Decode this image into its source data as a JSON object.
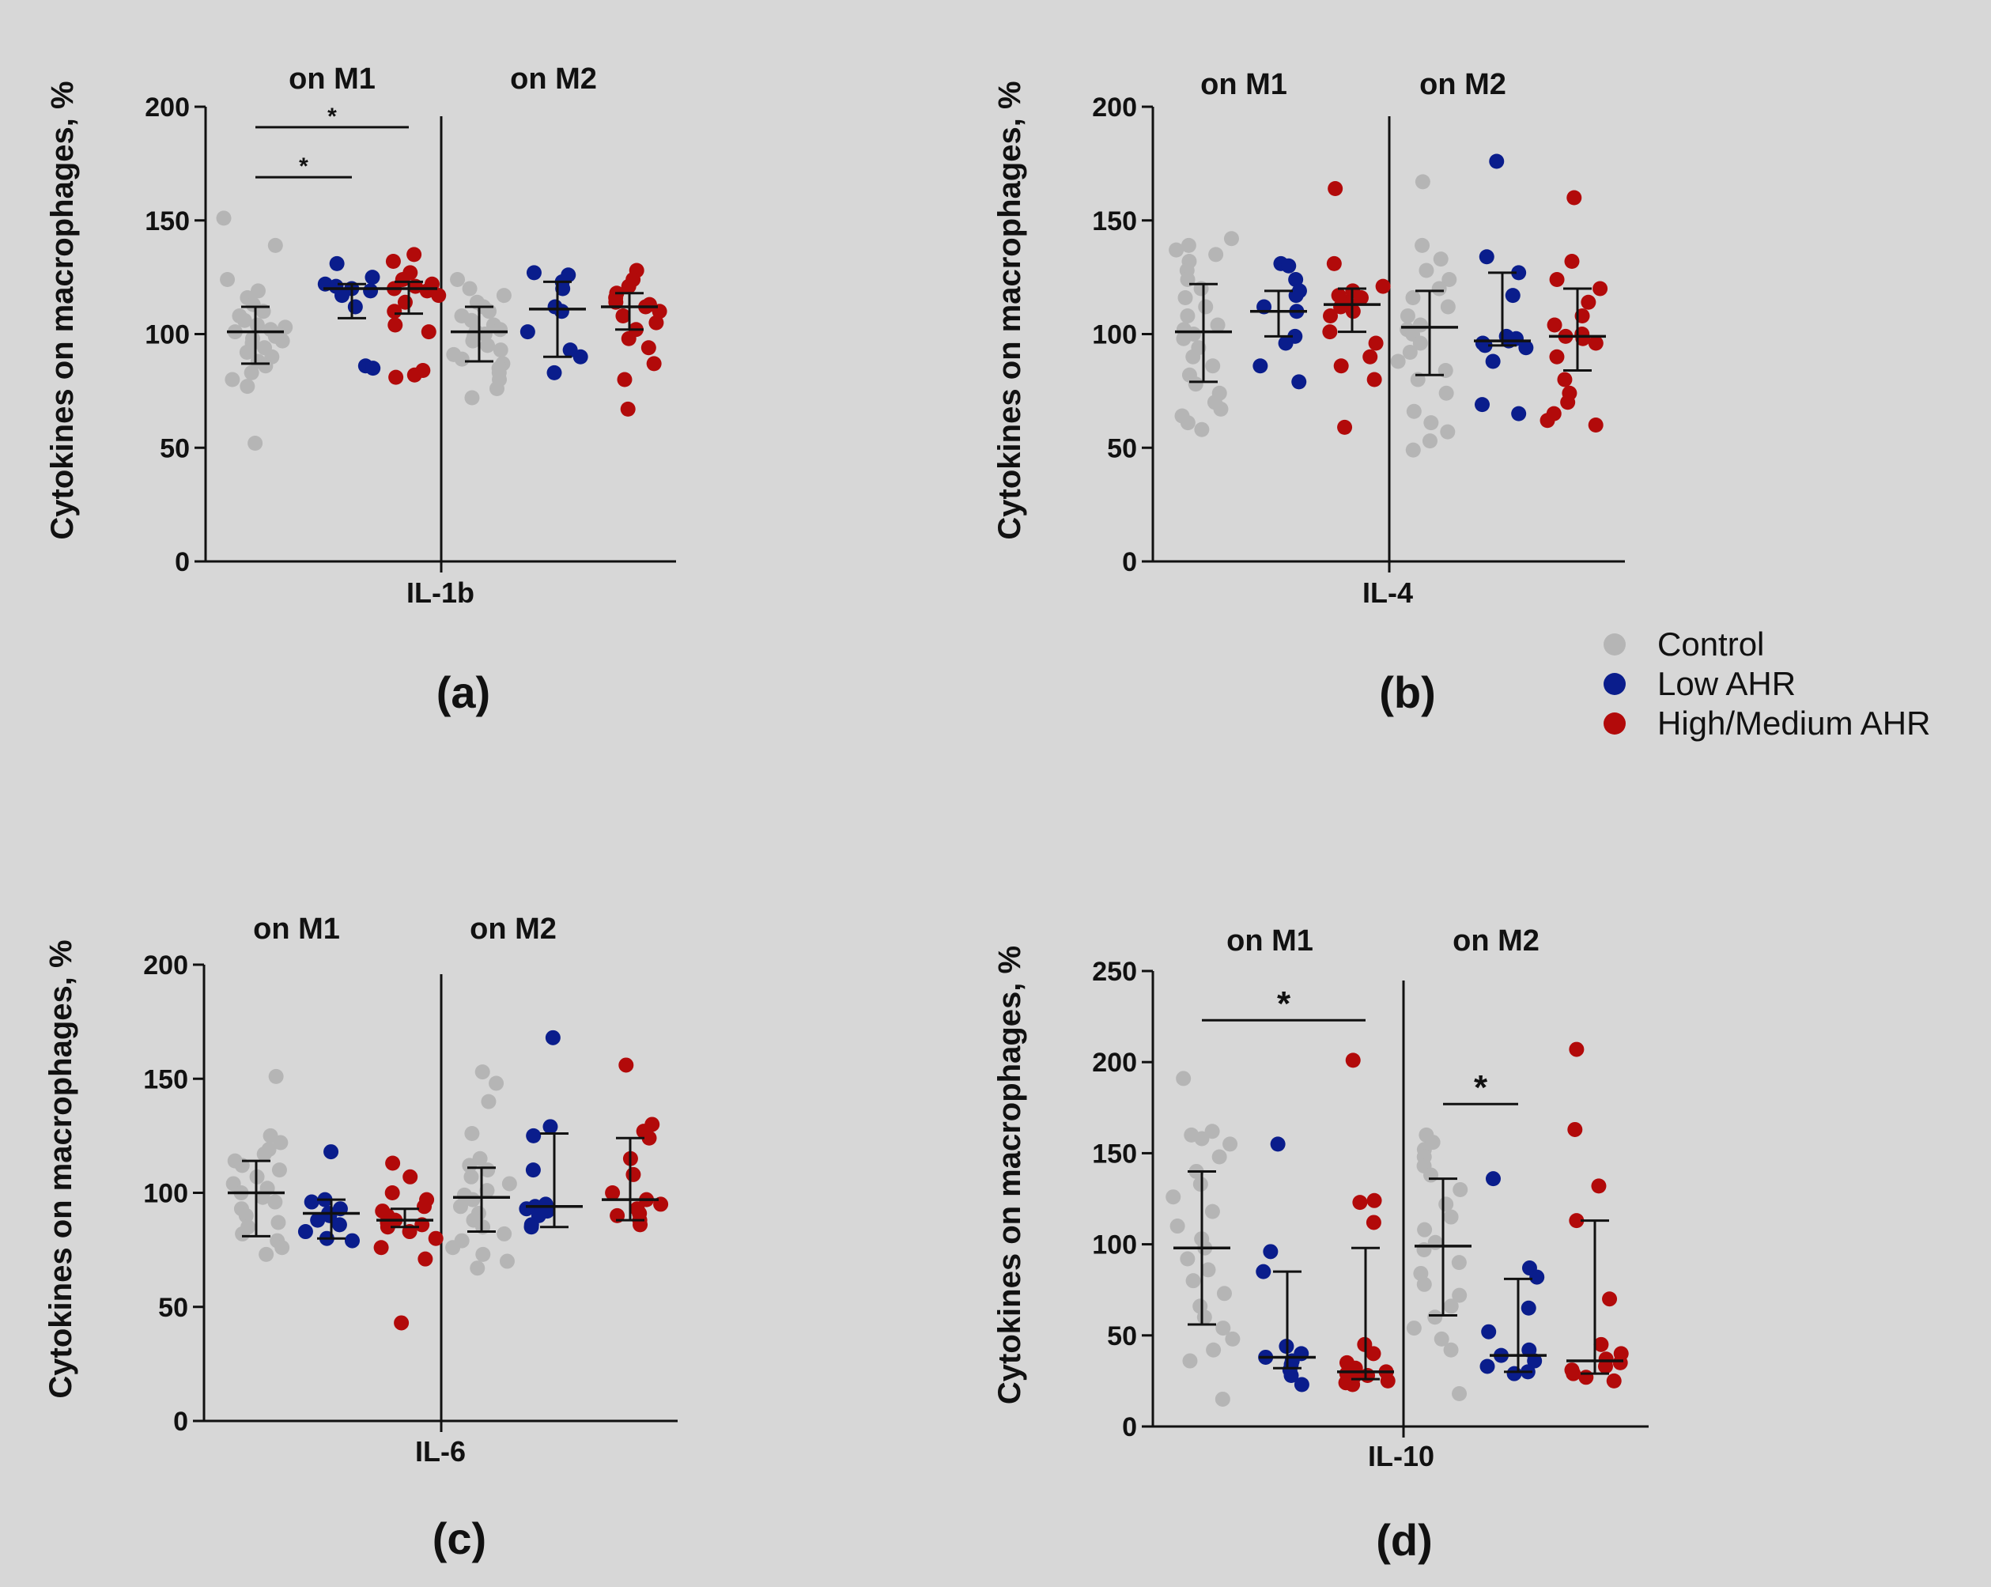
{
  "legend": {
    "items": [
      {
        "label": "Control",
        "color": "#b5b5b5"
      },
      {
        "label": "Low AHR",
        "color": "#0a1d8c"
      },
      {
        "label": "High/Medium AHR",
        "color": "#b20a0a"
      }
    ]
  },
  "colors": {
    "control": "#b5b5b5",
    "low": "#0a1d8c",
    "high": "#b20a0a",
    "axis": "#111111"
  },
  "chart_data": [
    {
      "type": "scatter",
      "panel_label": "(a)",
      "xlabel": "IL-1b",
      "ylabel": "Cytokines on macrophages, %",
      "ylim": [
        0,
        200
      ],
      "yticks": [
        0,
        50,
        100,
        150,
        200
      ],
      "groups": [
        "on M1",
        "on M2"
      ],
      "series": [
        {
          "name": "Control",
          "group": "on M1",
          "median": 101,
          "q1": 87,
          "q3": 112,
          "values": [
            151,
            139,
            124,
            119,
            116,
            113,
            110,
            108,
            106,
            104,
            103,
            102,
            101,
            100,
            99,
            98,
            97,
            96,
            94,
            92,
            90,
            88,
            86,
            83,
            80,
            77,
            52
          ]
        },
        {
          "name": "Low AHR",
          "group": "on M1",
          "median": 120,
          "q1": 107,
          "q3": 122,
          "values": [
            131,
            125,
            122,
            121,
            120,
            119,
            117,
            112,
            86,
            85
          ]
        },
        {
          "name": "High/Medium AHR",
          "group": "on M1",
          "median": 120,
          "q1": 109,
          "q3": 123,
          "values": [
            135,
            132,
            127,
            124,
            122,
            121,
            120,
            119,
            117,
            114,
            110,
            104,
            101,
            84,
            82,
            81
          ]
        },
        {
          "name": "Control",
          "group": "on M2",
          "median": 101,
          "q1": 88,
          "q3": 112,
          "values": [
            124,
            120,
            117,
            114,
            112,
            110,
            108,
            106,
            104,
            102,
            101,
            100,
            99,
            97,
            95,
            93,
            91,
            89,
            87,
            85,
            83,
            80,
            76,
            72
          ]
        },
        {
          "name": "Low AHR",
          "group": "on M2",
          "median": 111,
          "q1": 90,
          "q3": 123,
          "values": [
            127,
            126,
            123,
            120,
            112,
            110,
            101,
            93,
            90,
            83
          ]
        },
        {
          "name": "High/Medium AHR",
          "group": "on M2",
          "median": 112,
          "q1": 102,
          "q3": 118,
          "values": [
            128,
            124,
            121,
            118,
            116,
            114,
            113,
            112,
            110,
            108,
            105,
            102,
            98,
            94,
            87,
            80,
            67
          ]
        }
      ],
      "significance": [
        {
          "from": 0,
          "to": 1,
          "y": 169,
          "label": "*"
        },
        {
          "from": 0,
          "to": 2,
          "y": 191,
          "label": "*"
        }
      ]
    },
    {
      "type": "scatter",
      "panel_label": "(b)",
      "xlabel": "IL-4",
      "ylabel": "Cytokines on macrophages, %",
      "ylim": [
        0,
        200
      ],
      "yticks": [
        0,
        50,
        100,
        150,
        200
      ],
      "groups": [
        "on M1",
        "on M2"
      ],
      "series": [
        {
          "name": "Control",
          "group": "on M1",
          "median": 101,
          "q1": 79,
          "q3": 122,
          "values": [
            142,
            139,
            137,
            135,
            132,
            128,
            124,
            120,
            116,
            112,
            108,
            104,
            102,
            100,
            98,
            94,
            90,
            86,
            82,
            78,
            74,
            70,
            67,
            64,
            61,
            58
          ]
        },
        {
          "name": "Low AHR",
          "group": "on M1",
          "median": 110,
          "q1": 99,
          "q3": 119,
          "values": [
            131,
            130,
            124,
            119,
            117,
            112,
            110,
            99,
            96,
            86,
            79
          ]
        },
        {
          "name": "High/Medium AHR",
          "group": "on M1",
          "median": 113,
          "q1": 101,
          "q3": 120,
          "values": [
            164,
            131,
            121,
            119,
            117,
            116,
            114,
            113,
            112,
            110,
            108,
            101,
            96,
            90,
            86,
            80,
            59
          ]
        },
        {
          "name": "Control",
          "group": "on M2",
          "median": 103,
          "q1": 82,
          "q3": 119,
          "values": [
            167,
            139,
            133,
            128,
            124,
            120,
            116,
            112,
            108,
            104,
            102,
            100,
            96,
            92,
            88,
            84,
            80,
            74,
            66,
            61,
            57,
            53,
            49
          ]
        },
        {
          "name": "Low AHR",
          "group": "on M2",
          "median": 97,
          "q1": 95,
          "q3": 127,
          "values": [
            176,
            134,
            127,
            117,
            99,
            98,
            97,
            96,
            95,
            94,
            88,
            69,
            65
          ]
        },
        {
          "name": "High/Medium AHR",
          "group": "on M2",
          "median": 99,
          "q1": 84,
          "q3": 120,
          "values": [
            160,
            132,
            124,
            120,
            114,
            108,
            104,
            100,
            99,
            98,
            96,
            90,
            80,
            74,
            70,
            65,
            62,
            60
          ]
        }
      ],
      "significance": []
    },
    {
      "type": "scatter",
      "panel_label": "(c)",
      "xlabel": "IL-6",
      "ylabel": "Cytokines on macrophages, %",
      "ylim": [
        0,
        200
      ],
      "yticks": [
        0,
        50,
        100,
        150,
        200
      ],
      "groups": [
        "on M1",
        "on M2"
      ],
      "series": [
        {
          "name": "Control",
          "group": "on M1",
          "median": 100,
          "q1": 81,
          "q3": 114,
          "values": [
            151,
            125,
            122,
            119,
            117,
            114,
            112,
            110,
            107,
            104,
            102,
            100,
            98,
            96,
            93,
            90,
            87,
            85,
            82,
            79,
            76,
            73
          ]
        },
        {
          "name": "Low AHR",
          "group": "on M1",
          "median": 91,
          "q1": 80,
          "q3": 97,
          "values": [
            118,
            97,
            96,
            93,
            91,
            90,
            88,
            86,
            83,
            80,
            79
          ]
        },
        {
          "name": "High/Medium AHR",
          "group": "on M1",
          "median": 88,
          "q1": 85,
          "q3": 93,
          "values": [
            113,
            107,
            100,
            97,
            94,
            92,
            90,
            88,
            87,
            86,
            85,
            83,
            80,
            76,
            71,
            43
          ]
        },
        {
          "name": "Control",
          "group": "on M2",
          "median": 98,
          "q1": 83,
          "q3": 111,
          "values": [
            153,
            148,
            140,
            126,
            115,
            112,
            110,
            107,
            104,
            101,
            99,
            97,
            94,
            91,
            88,
            85,
            82,
            79,
            76,
            73,
            70,
            67
          ]
        },
        {
          "name": "Low AHR",
          "group": "on M2",
          "median": 94,
          "q1": 85,
          "q3": 126,
          "values": [
            168,
            129,
            125,
            110,
            95,
            94,
            93,
            92,
            90,
            86,
            85
          ]
        },
        {
          "name": "High/Medium AHR",
          "group": "on M2",
          "median": 97,
          "q1": 88,
          "q3": 124,
          "values": [
            156,
            130,
            127,
            124,
            115,
            108,
            100,
            97,
            95,
            93,
            91,
            90,
            88,
            86
          ]
        }
      ],
      "significance": []
    },
    {
      "type": "scatter",
      "panel_label": "(d)",
      "xlabel": "IL-10",
      "ylabel": "Cytokines on macrophages, %",
      "ylim": [
        0,
        250
      ],
      "yticks": [
        0,
        50,
        100,
        150,
        200,
        250
      ],
      "groups": [
        "on M1",
        "on M2"
      ],
      "series": [
        {
          "name": "Control",
          "group": "on M1",
          "median": 98,
          "q1": 56,
          "q3": 140,
          "values": [
            191,
            162,
            160,
            158,
            155,
            148,
            140,
            133,
            126,
            118,
            110,
            103,
            98,
            92,
            86,
            80,
            73,
            66,
            60,
            54,
            48,
            42,
            36,
            15
          ]
        },
        {
          "name": "Low AHR",
          "group": "on M1",
          "median": 38,
          "q1": 32,
          "q3": 85,
          "values": [
            155,
            96,
            85,
            44,
            40,
            38,
            36,
            34,
            31,
            28,
            23
          ]
        },
        {
          "name": "High/Medium AHR",
          "group": "on M1",
          "median": 30,
          "q1": 26,
          "q3": 98,
          "values": [
            201,
            124,
            123,
            112,
            45,
            40,
            35,
            32,
            30,
            29,
            28,
            27,
            25,
            24,
            23
          ]
        },
        {
          "name": "Control",
          "group": "on M2",
          "median": 99,
          "q1": 61,
          "q3": 136,
          "values": [
            160,
            156,
            152,
            148,
            143,
            138,
            130,
            122,
            115,
            108,
            101,
            97,
            90,
            84,
            78,
            72,
            66,
            60,
            54,
            48,
            42,
            18
          ]
        },
        {
          "name": "Low AHR",
          "group": "on M2",
          "median": 39,
          "q1": 30,
          "q3": 81,
          "values": [
            136,
            87,
            82,
            65,
            52,
            42,
            39,
            36,
            33,
            30,
            29
          ]
        },
        {
          "name": "High/Medium AHR",
          "group": "on M2",
          "median": 36,
          "q1": 29,
          "q3": 113,
          "values": [
            207,
            163,
            132,
            113,
            70,
            45,
            40,
            37,
            35,
            33,
            31,
            29,
            27,
            25
          ]
        }
      ],
      "significance": [
        {
          "from": 0,
          "to": 2,
          "y": 223,
          "label": "*"
        },
        {
          "from": 3,
          "to": 4,
          "y": 177,
          "label": "*"
        }
      ]
    }
  ]
}
